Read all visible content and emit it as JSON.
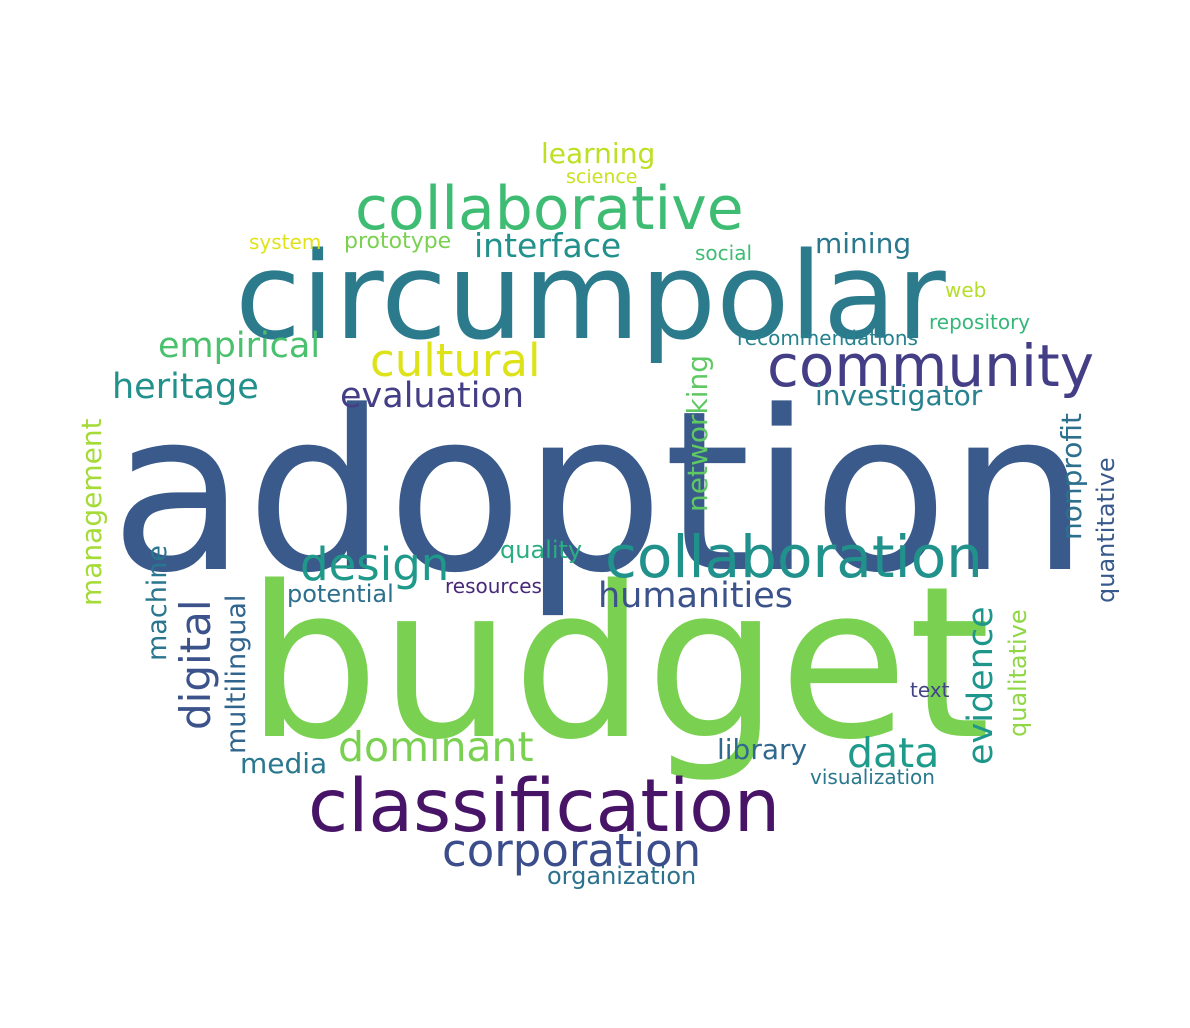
{
  "words": [
    {
      "text": "adoption",
      "color": "#3a5a8c"
    },
    {
      "text": "budget",
      "color": "#7ad151"
    },
    {
      "text": "circumpolar",
      "color": "#2c7b8c"
    },
    {
      "text": "classification",
      "color": "#481467"
    },
    {
      "text": "collaborative",
      "color": "#3fbc73"
    },
    {
      "text": "collaboration",
      "color": "#21918c"
    },
    {
      "text": "community",
      "color": "#433e85"
    },
    {
      "text": "cultural",
      "color": "#dde318"
    },
    {
      "text": "corporation",
      "color": "#3b4d8a"
    },
    {
      "text": "design",
      "color": "#1f9a8a"
    },
    {
      "text": "dominant",
      "color": "#7ad151"
    },
    {
      "text": "data",
      "color": "#1e9b8a"
    },
    {
      "text": "digital",
      "color": "#3b528b"
    },
    {
      "text": "evaluation",
      "color": "#433e85"
    },
    {
      "text": "empirical",
      "color": "#4ac16d"
    },
    {
      "text": "heritage",
      "color": "#22918c"
    },
    {
      "text": "humanities",
      "color": "#3b528b"
    },
    {
      "text": "evidence",
      "color": "#1f968b"
    },
    {
      "text": "interface",
      "color": "#22918c"
    },
    {
      "text": "learning",
      "color": "#bddf26"
    },
    {
      "text": "mining",
      "color": "#2a788e"
    },
    {
      "text": "investigator",
      "color": "#26828e"
    },
    {
      "text": "networking",
      "color": "#5ec962"
    },
    {
      "text": "nonprofit",
      "color": "#2d708e"
    },
    {
      "text": "management",
      "color": "#a5db36"
    },
    {
      "text": "machine",
      "color": "#2a768e"
    },
    {
      "text": "multilingual",
      "color": "#32658e"
    },
    {
      "text": "quantitative",
      "color": "#38598c"
    },
    {
      "text": "qualitative",
      "color": "#8fd744"
    },
    {
      "text": "media",
      "color": "#2a788e"
    },
    {
      "text": "library",
      "color": "#31688e"
    },
    {
      "text": "quality",
      "color": "#28ae80"
    },
    {
      "text": "potential",
      "color": "#2d708e"
    },
    {
      "text": "resources",
      "color": "#482878"
    },
    {
      "text": "science",
      "color": "#cae11f"
    },
    {
      "text": "system",
      "color": "#e0e318"
    },
    {
      "text": "prototype",
      "color": "#7ad151"
    },
    {
      "text": "social",
      "color": "#3fbc73"
    },
    {
      "text": "web",
      "color": "#b5de2b"
    },
    {
      "text": "recommendations",
      "color": "#26828e"
    },
    {
      "text": "repository",
      "color": "#35b779"
    },
    {
      "text": "text",
      "color": "#414487"
    },
    {
      "text": "visualization",
      "color": "#2a788e"
    },
    {
      "text": "organization",
      "color": "#2c728e"
    }
  ]
}
